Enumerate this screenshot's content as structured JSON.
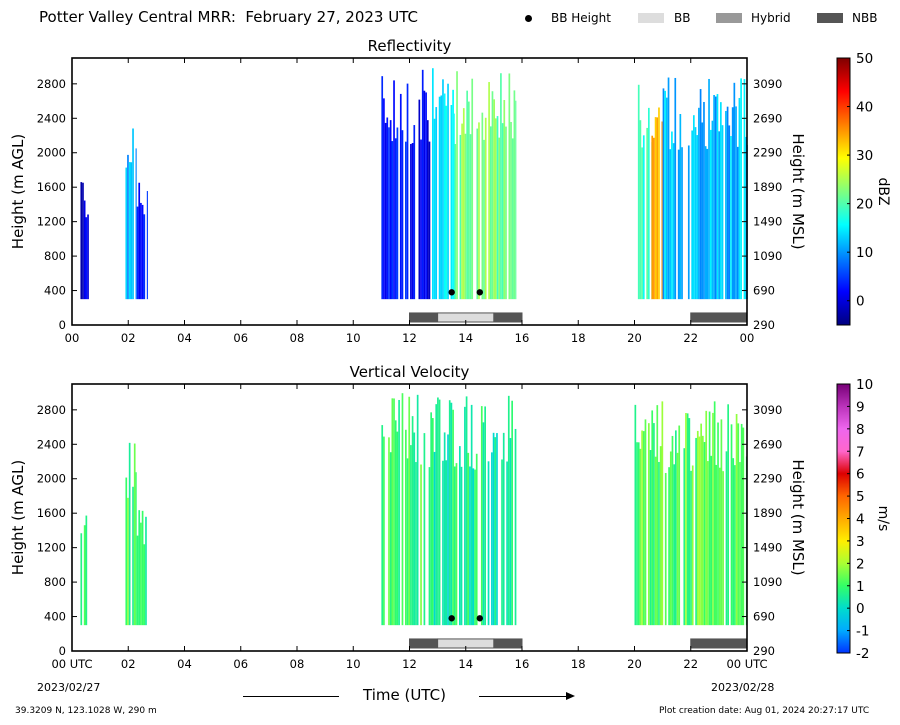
{
  "header": {
    "title": "Potter Valley Central MRR:  February 27, 2023 UTC"
  },
  "legend": {
    "items": [
      {
        "label": "BB Height",
        "marker": "dot",
        "color": "#000000"
      },
      {
        "label": "BB",
        "marker": "bar",
        "color": "#dddddd"
      },
      {
        "label": "Hybrid",
        "marker": "bar",
        "color": "#999999"
      },
      {
        "label": "NBB",
        "marker": "bar",
        "color": "#555555"
      }
    ]
  },
  "footer": {
    "location": "39.3209 N, 123.1028 W, 290 m",
    "creation": "Plot creation date: Aug 01, 2024 20:27:17 UTC",
    "xlabel": "Time (UTC)",
    "start_date": "2023/02/27",
    "end_date": "2023/02/28"
  },
  "chart_data": [
    {
      "type": "heatmap",
      "title": "Reflectivity",
      "xlabel": "",
      "ylabel": "Height (m AGL)",
      "y2label": "Height (m MSL)",
      "xlim": [
        0,
        24
      ],
      "ylim": [
        0,
        3100
      ],
      "y2ticks": [
        "290",
        "690",
        "1090",
        "1490",
        "1890",
        "2290",
        "2690",
        "3090"
      ],
      "xticklabels": [
        "00",
        "02",
        "04",
        "06",
        "08",
        "10",
        "12",
        "14",
        "16",
        "18",
        "20",
        "22",
        "00"
      ],
      "yticks": [
        0,
        400,
        800,
        1200,
        1600,
        2000,
        2400,
        2800
      ],
      "colorbar": {
        "label": "dBZ",
        "range": [
          -5,
          50
        ],
        "ticks": [
          0,
          10,
          20,
          30,
          40,
          50
        ],
        "colors": [
          "#00007f",
          "#0000ff",
          "#007fff",
          "#00ffff",
          "#7fff7f",
          "#ffff00",
          "#ff7f00",
          "#ff0000",
          "#7f0000"
        ]
      },
      "precip_periods": [
        {
          "start": 0.3,
          "end": 0.6,
          "top": 1700,
          "value": 0
        },
        {
          "start": 1.9,
          "end": 2.3,
          "top": 2500,
          "value": 12
        },
        {
          "start": 2.3,
          "end": 2.7,
          "top": 1700,
          "value": 3
        },
        {
          "start": 11.0,
          "end": 12.8,
          "top": 3000,
          "value": 2
        },
        {
          "start": 12.8,
          "end": 13.6,
          "top": 3000,
          "value": 14
        },
        {
          "start": 13.6,
          "end": 15.8,
          "top": 3000,
          "value": 22
        },
        {
          "start": 20.0,
          "end": 20.6,
          "top": 2900,
          "value": 18
        },
        {
          "start": 20.6,
          "end": 21.0,
          "top": 2900,
          "value": 35
        },
        {
          "start": 21.0,
          "end": 24.0,
          "top": 2900,
          "value": 12
        }
      ],
      "bb_height": [
        {
          "x": 13.5,
          "y": 380
        },
        {
          "x": 14.5,
          "y": 380
        }
      ],
      "bb_segments": [
        {
          "start": 12.0,
          "end": 13.0,
          "kind": "NBB"
        },
        {
          "start": 13.0,
          "end": 15.0,
          "kind": "BB"
        },
        {
          "start": 15.0,
          "end": 16.0,
          "kind": "NBB"
        },
        {
          "start": 22.0,
          "end": 24.0,
          "kind": "NBB"
        }
      ]
    },
    {
      "type": "heatmap",
      "title": "Vertical Velocity",
      "xlabel": "Time (UTC)",
      "ylabel": "Height (m AGL)",
      "y2label": "Height (m MSL)",
      "xlim": [
        0,
        24
      ],
      "ylim": [
        0,
        3100
      ],
      "y2ticks": [
        "290",
        "690",
        "1090",
        "1490",
        "1890",
        "2290",
        "2690",
        "3090"
      ],
      "xticklabels": [
        "00 UTC",
        "02",
        "04",
        "06",
        "08",
        "10",
        "12",
        "14",
        "16",
        "18",
        "20",
        "22",
        "00 UTC"
      ],
      "yticks": [
        0,
        400,
        800,
        1200,
        1600,
        2000,
        2400,
        2800
      ],
      "colorbar": {
        "label": "m/s",
        "range": [
          -2,
          10
        ],
        "ticks": [
          -2,
          -1,
          0,
          1,
          2,
          3,
          4,
          5,
          6,
          7,
          8,
          9,
          10
        ],
        "colors": [
          "#0033ff",
          "#00aaff",
          "#00ddcc",
          "#33ff66",
          "#aaff33",
          "#ffee00",
          "#ffaa00",
          "#ff6600",
          "#dd0000",
          "#ff66cc",
          "#ee66ee",
          "#bb33bb",
          "#770077"
        ]
      },
      "precip_periods": [
        {
          "start": 0.3,
          "end": 0.6,
          "top": 1700,
          "value": 0.8
        },
        {
          "start": 1.9,
          "end": 2.3,
          "top": 2500,
          "value": 1.2
        },
        {
          "start": 2.3,
          "end": 2.7,
          "top": 1700,
          "value": 1.0
        },
        {
          "start": 11.0,
          "end": 12.8,
          "top": 3000,
          "value": 1.0
        },
        {
          "start": 12.8,
          "end": 15.8,
          "top": 3000,
          "value": 0.5
        },
        {
          "start": 20.0,
          "end": 24.0,
          "top": 2900,
          "value": 1.3
        }
      ],
      "bb_height": [
        {
          "x": 13.5,
          "y": 380
        },
        {
          "x": 14.5,
          "y": 380
        }
      ],
      "bb_segments": [
        {
          "start": 12.0,
          "end": 13.0,
          "kind": "NBB"
        },
        {
          "start": 13.0,
          "end": 15.0,
          "kind": "BB"
        },
        {
          "start": 15.0,
          "end": 16.0,
          "kind": "NBB"
        },
        {
          "start": 22.0,
          "end": 24.0,
          "kind": "NBB"
        }
      ]
    }
  ]
}
